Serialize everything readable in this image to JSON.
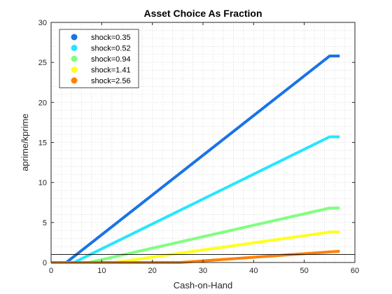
{
  "chart_data": {
    "type": "line",
    "title": "Asset Choice As Fraction",
    "xlabel": "Cash-on-Hand",
    "ylabel": "aprime/kprime",
    "xlim": [
      0,
      60
    ],
    "ylim": [
      0,
      30
    ],
    "xticks": [
      0,
      10,
      20,
      30,
      40,
      50,
      60
    ],
    "yticks": [
      0,
      5,
      10,
      15,
      20,
      25,
      30
    ],
    "grid": "minor dotted",
    "legend_position": "top-left",
    "reference_line": {
      "y": 1,
      "color": "#000000"
    },
    "series": [
      {
        "name": "shock=0.35",
        "color": "#1A73E8",
        "x": [
          0,
          3.0,
          55,
          57
        ],
        "y": [
          0,
          0,
          25.8,
          25.8
        ]
      },
      {
        "name": "shock=0.52",
        "color": "#26E6FF",
        "x": [
          0,
          4.5,
          55,
          57
        ],
        "y": [
          0,
          0,
          15.7,
          15.7
        ]
      },
      {
        "name": "shock=0.94",
        "color": "#80FF80",
        "x": [
          0,
          7.5,
          55,
          57
        ],
        "y": [
          0,
          0,
          6.8,
          6.8
        ]
      },
      {
        "name": "shock=1.41",
        "color": "#FFFF1A",
        "x": [
          0,
          12.5,
          55,
          57
        ],
        "y": [
          0,
          0,
          3.8,
          3.8
        ]
      },
      {
        "name": "shock=2.56",
        "color": "#FF8000",
        "x": [
          0,
          25.5,
          55.5,
          57
        ],
        "y": [
          0,
          0,
          1.35,
          1.4
        ]
      }
    ]
  }
}
